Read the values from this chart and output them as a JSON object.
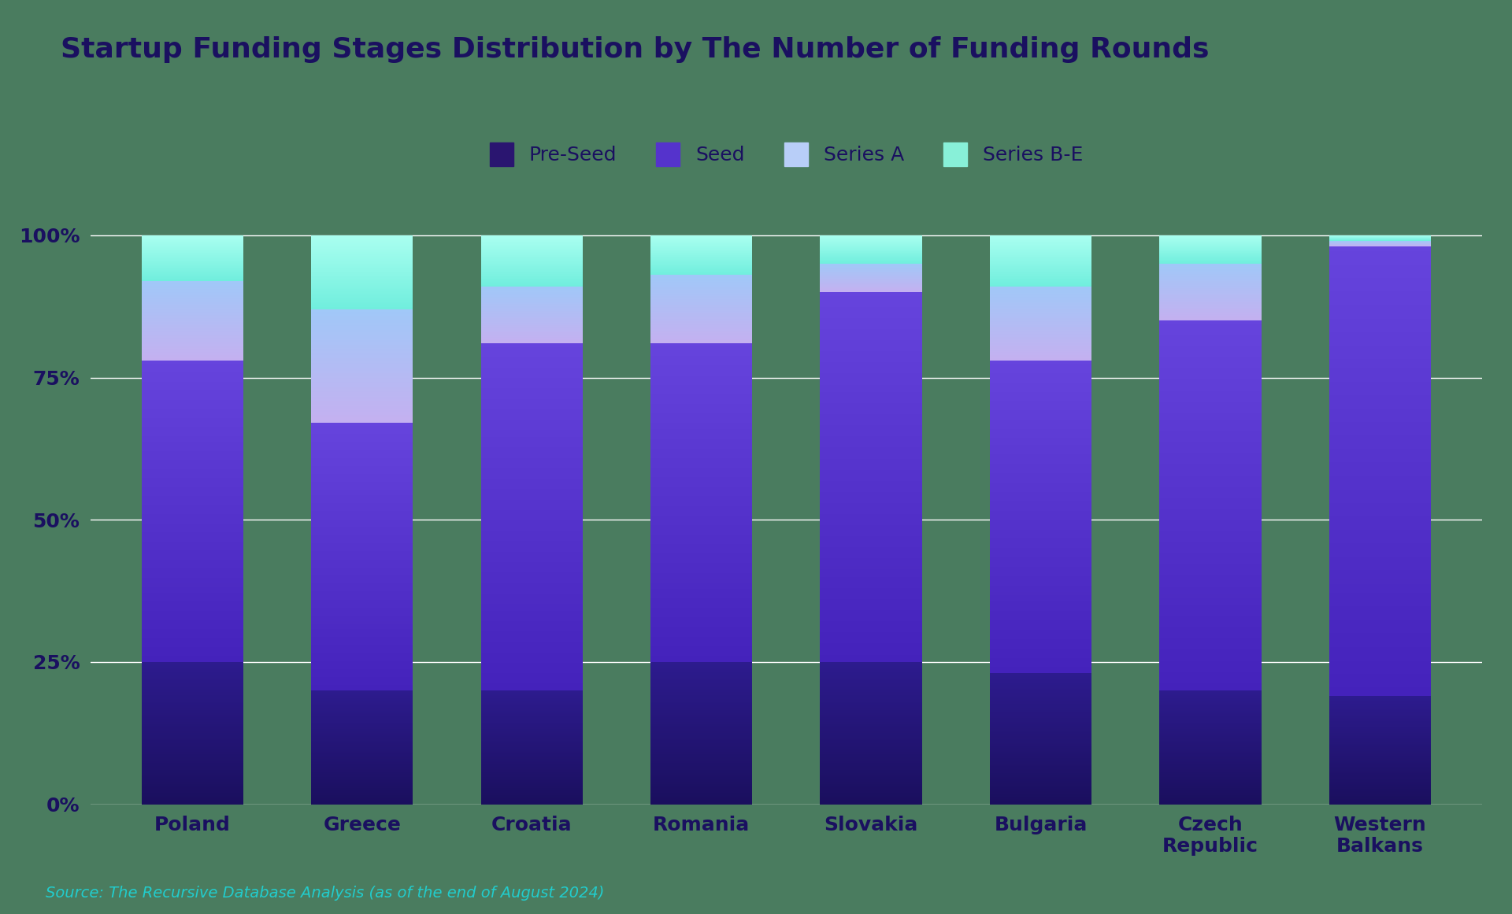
{
  "title": "Startup Funding Stages Distribution by The Number of Funding Rounds",
  "source": "Source: The Recursive Database Analysis (as of the end of August 2024)",
  "categories": [
    "Poland",
    "Greece",
    "Croatia",
    "Romania",
    "Slovakia",
    "Bulgaria",
    "Czech\nRepublic",
    "Western\nBalkans"
  ],
  "series": {
    "Pre-Seed": [
      0.25,
      0.2,
      0.2,
      0.25,
      0.25,
      0.23,
      0.2,
      0.19
    ],
    "Seed": [
      0.53,
      0.47,
      0.61,
      0.56,
      0.65,
      0.55,
      0.65,
      0.79
    ],
    "Series A": [
      0.14,
      0.2,
      0.1,
      0.12,
      0.05,
      0.13,
      0.1,
      0.01
    ],
    "Series B-E": [
      0.08,
      0.13,
      0.09,
      0.07,
      0.05,
      0.09,
      0.05,
      0.01
    ]
  },
  "colors": {
    "Pre-Seed": [
      "#1a0f5e",
      "#2d1b8e"
    ],
    "Seed": [
      "#4422bb",
      "#6644dd"
    ],
    "Series A": [
      "#c4b0f0",
      "#a0c8f8"
    ],
    "Series B-E": [
      "#70eedd",
      "#aafff0"
    ]
  },
  "legend_colors": {
    "Pre-Seed": "#2a1570",
    "Seed": "#5533cc",
    "Series A": "#b8cef8",
    "Series B-E": "#88f0d8"
  },
  "background_color": "#4a7c5f",
  "text_color": "#1a1060",
  "grid_color": "#ffffff",
  "source_color": "#22cccc",
  "bar_width": 0.6,
  "ylim": [
    0,
    1.06
  ],
  "yticks": [
    0,
    0.25,
    0.5,
    0.75,
    1.0
  ],
  "ytick_labels": [
    "0%",
    "25%",
    "50%",
    "75%",
    "100%"
  ],
  "title_fontsize": 26,
  "legend_fontsize": 18,
  "tick_fontsize": 18,
  "source_fontsize": 14
}
